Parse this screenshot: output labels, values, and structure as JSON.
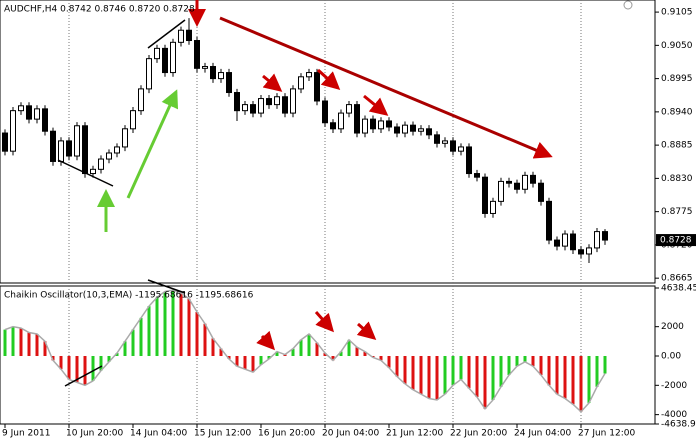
{
  "chart_data": [
    {
      "type": "candlestick",
      "title": "AUDCHF,H4 0.8742 0.8746 0.8720 0.8728",
      "categories": [
        "9 Jun 2011",
        null,
        null,
        null,
        null,
        null,
        null,
        null,
        "10 Jun 20:00",
        null,
        null,
        null,
        null,
        null,
        null,
        null,
        "14 Jun 04:00",
        null,
        null,
        null,
        null,
        null,
        null,
        null,
        "15 Jun 12:00",
        null,
        null,
        null,
        null,
        null,
        null,
        null,
        "16 Jun 20:00",
        null,
        null,
        null,
        null,
        null,
        null,
        null,
        "20 Jun 04:00",
        null,
        null,
        null,
        null,
        null,
        null,
        null,
        "21 Jun 12:00",
        null,
        null,
        null,
        null,
        null,
        null,
        null,
        "22 Jun 20:00",
        null,
        null,
        null,
        null,
        null,
        null,
        null,
        "24 Jun 04:00",
        null,
        null,
        null,
        null,
        null,
        null,
        null,
        "27 Jun 12:00",
        null,
        null,
        null
      ],
      "open": [
        0.8905,
        0.8875,
        0.8942,
        0.895,
        0.8928,
        0.8945,
        0.8908,
        0.8858,
        0.8892,
        0.8867,
        0.8917,
        0.8838,
        0.8845,
        0.8862,
        0.8872,
        0.8882,
        0.8912,
        0.8942,
        0.8978,
        0.9028,
        0.9045,
        0.9005,
        0.9055,
        0.9075,
        0.9058,
        0.9012,
        0.9015,
        0.8995,
        0.9005,
        0.8972,
        0.8942,
        0.8952,
        0.8938,
        0.8962,
        0.8952,
        0.8965,
        0.8938,
        0.8978,
        0.8998,
        0.9005,
        0.8958,
        0.8922,
        0.8912,
        0.8938,
        0.8952,
        0.8905,
        0.8928,
        0.8912,
        0.8925,
        0.8915,
        0.8905,
        0.8918,
        0.8908,
        0.8912,
        0.8902,
        0.8888,
        0.8892,
        0.8875,
        0.8882,
        0.8838,
        0.8832,
        0.8772,
        0.8792,
        0.8825,
        0.8822,
        0.8812,
        0.8835,
        0.8822,
        0.8792,
        0.8728,
        0.8718,
        0.8738,
        0.8712,
        0.8705,
        0.8715,
        0.8742
      ],
      "high": [
        0.8911,
        0.8948,
        0.8956,
        0.8956,
        0.8951,
        0.8951,
        0.8914,
        0.8898,
        0.8898,
        0.8923,
        0.8923,
        0.8851,
        0.8868,
        0.8878,
        0.8888,
        0.8918,
        0.8948,
        0.8984,
        0.9034,
        0.9051,
        0.9051,
        0.9061,
        0.9081,
        0.9095,
        0.9064,
        0.9021,
        0.9021,
        0.9011,
        0.9011,
        0.8978,
        0.8958,
        0.8958,
        0.8968,
        0.8968,
        0.8971,
        0.8971,
        0.8984,
        0.9004,
        0.9011,
        0.9011,
        0.8964,
        0.8928,
        0.8944,
        0.8958,
        0.8958,
        0.8934,
        0.8934,
        0.8931,
        0.8931,
        0.8921,
        0.8924,
        0.8924,
        0.8918,
        0.8918,
        0.8908,
        0.8898,
        0.8898,
        0.8888,
        0.8888,
        0.8844,
        0.8838,
        0.8798,
        0.8831,
        0.8831,
        0.8828,
        0.8841,
        0.8841,
        0.8828,
        0.8798,
        0.8734,
        0.8744,
        0.8744,
        0.8718,
        0.8721,
        0.8748,
        0.8746
      ],
      "low": [
        0.8868,
        0.8868,
        0.8935,
        0.8921,
        0.8921,
        0.8901,
        0.8851,
        0.8851,
        0.886,
        0.886,
        0.8831,
        0.8831,
        0.8838,
        0.8855,
        0.8865,
        0.8875,
        0.8905,
        0.8935,
        0.8971,
        0.9021,
        0.8998,
        0.8998,
        0.9048,
        0.9051,
        0.9005,
        0.9005,
        0.8988,
        0.8988,
        0.8965,
        0.8925,
        0.8935,
        0.8931,
        0.8931,
        0.8945,
        0.8945,
        0.8931,
        0.8931,
        0.8971,
        0.8991,
        0.8951,
        0.8915,
        0.8905,
        0.8905,
        0.8931,
        0.8898,
        0.8898,
        0.8905,
        0.8905,
        0.8908,
        0.8898,
        0.8898,
        0.8901,
        0.8901,
        0.8895,
        0.8881,
        0.8881,
        0.8868,
        0.8868,
        0.8831,
        0.8825,
        0.8765,
        0.8765,
        0.8785,
        0.8815,
        0.8805,
        0.8805,
        0.8815,
        0.8785,
        0.8721,
        0.8711,
        0.8711,
        0.8705,
        0.8698,
        0.869,
        0.8708,
        0.872
      ],
      "close": [
        0.8875,
        0.8942,
        0.895,
        0.8928,
        0.8945,
        0.8908,
        0.8858,
        0.8892,
        0.8867,
        0.8917,
        0.8838,
        0.8845,
        0.8862,
        0.8872,
        0.8882,
        0.8912,
        0.8942,
        0.8978,
        0.9028,
        0.9045,
        0.9005,
        0.9055,
        0.9075,
        0.9058,
        0.9012,
        0.9015,
        0.8995,
        0.9005,
        0.8972,
        0.8942,
        0.8952,
        0.8938,
        0.8962,
        0.8952,
        0.8965,
        0.8938,
        0.8978,
        0.8998,
        0.9005,
        0.8958,
        0.8922,
        0.8912,
        0.8938,
        0.8952,
        0.8905,
        0.8928,
        0.8912,
        0.8925,
        0.8915,
        0.8905,
        0.8918,
        0.8908,
        0.8912,
        0.8902,
        0.8888,
        0.8892,
        0.8875,
        0.8882,
        0.8838,
        0.8832,
        0.8772,
        0.8792,
        0.8825,
        0.8822,
        0.8812,
        0.8835,
        0.8822,
        0.8792,
        0.8728,
        0.8718,
        0.8738,
        0.8712,
        0.8705,
        0.8715,
        0.8742,
        0.8728
      ],
      "ylim": [
        0.8657,
        0.9125
      ],
      "yticks": [
        0.9105,
        {
          "value": 0.905,
          "label": "0.9050"
        },
        0.8995,
        {
          "value": 0.894,
          "label": "0.8940"
        },
        0.8885,
        {
          "value": 0.883,
          "label": "0.8830"
        },
        0.8775,
        {
          "value": 0.872,
          "label": "0.8720"
        },
        0.8665
      ],
      "last_price": 0.8728,
      "up_color": "#ffffff",
      "down_color": "#000000",
      "grid": true
    },
    {
      "type": "histogram",
      "title": "Chaikin Oscillator(10,3,EMA) -1195.68616 -1195.68616",
      "values": [
        1800,
        2000,
        1900,
        1600,
        1500,
        1000,
        -300,
        -900,
        -1600,
        -1800,
        -2000,
        -1700,
        -1000,
        -400,
        200,
        1000,
        1800,
        2600,
        3400,
        4000,
        4400,
        4500,
        4300,
        3900,
        3000,
        2200,
        1200,
        500,
        -200,
        -700,
        -900,
        -1100,
        -600,
        -200,
        300,
        100,
        500,
        1100,
        1500,
        900,
        200,
        -300,
        300,
        1100,
        600,
        300,
        -100,
        -300,
        -800,
        -1400,
        -1900,
        -2300,
        -2600,
        -2900,
        -3000,
        -2600,
        -2000,
        -1600,
        -2200,
        -2800,
        -3600,
        -3000,
        -2100,
        -1300,
        -700,
        -400,
        -700,
        -1300,
        -2000,
        -2600,
        -2900,
        -3300,
        -3800,
        -3200,
        -2100,
        -1195.68616
      ],
      "ylim": [
        -4638.91,
        4638.452
      ],
      "yticks": [
        4638.452,
        2000,
        {
          "value": 0,
          "label": "0.00"
        },
        -2000,
        -4000,
        -4638.91
      ],
      "up_color": "#22cc22",
      "down_color": "#dd1111",
      "line_color": "#aaaaaa"
    }
  ]
}
